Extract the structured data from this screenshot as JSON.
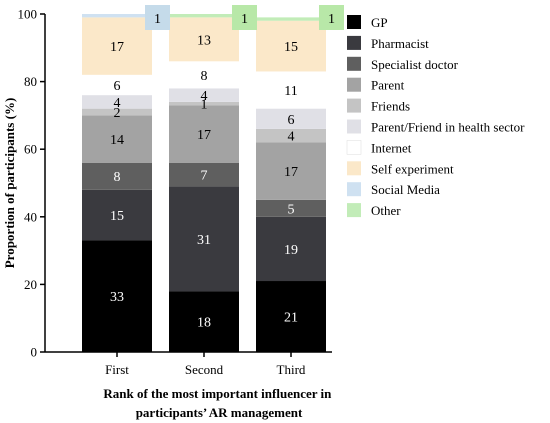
{
  "chart_data": {
    "type": "bar",
    "stacked": true,
    "categories": [
      "First",
      "Second",
      "Third"
    ],
    "xlabel": "Rank of the most important influencer in participants’ AR management",
    "xlabel_lines": [
      "Rank of the most important influencer in",
      "participants’ AR management"
    ],
    "ylabel": "Proportion of participants (%)",
    "ylim": [
      0,
      100
    ],
    "yticks": [
      0,
      20,
      40,
      60,
      80,
      100
    ],
    "legend_position": "right",
    "grid": false,
    "series": [
      {
        "name": "GP",
        "color": "#000000",
        "label_color": "#ffffff",
        "values": [
          33,
          18,
          21
        ]
      },
      {
        "name": "Pharmacist",
        "color": "#3a3a3f",
        "label_color": "#ffffff",
        "values": [
          15,
          31,
          19
        ]
      },
      {
        "name": "Specialist doctor",
        "color": "#5f5f5f",
        "label_color": "#ffffff",
        "values": [
          8,
          7,
          5
        ]
      },
      {
        "name": "Parent",
        "color": "#a3a3a3",
        "label_color": "#000000",
        "values": [
          14,
          17,
          17
        ]
      },
      {
        "name": "Friends",
        "color": "#c4c4c4",
        "label_color": "#000000",
        "values": [
          2,
          1,
          4
        ]
      },
      {
        "name": "Parent/Friend in health sector",
        "color": "#e0e0e6",
        "label_color": "#000000",
        "values": [
          4,
          4,
          6
        ]
      },
      {
        "name": "Internet",
        "color": "#ffffff",
        "label_color": "#000000",
        "values": [
          6,
          8,
          11
        ]
      },
      {
        "name": "Self experiment",
        "color": "#fbe8c9",
        "label_color": "#000000",
        "values": [
          17,
          13,
          15
        ]
      },
      {
        "name": "Social Media",
        "color": "#cfe1f1",
        "label_color": "#000000",
        "values": [
          1,
          0,
          0
        ]
      },
      {
        "name": "Other",
        "color": "#c2ecb8",
        "label_color": "#000000",
        "values": [
          0,
          1,
          1
        ]
      }
    ],
    "callouts": [
      {
        "category": "First",
        "series": "Social Media",
        "value": 1,
        "color": "#c5dbea"
      },
      {
        "category": "Second",
        "series": "Other",
        "value": 1,
        "color": "#b8e8a8"
      },
      {
        "category": "Third",
        "series": "Other",
        "value": 1,
        "color": "#b8e8a8"
      }
    ]
  }
}
